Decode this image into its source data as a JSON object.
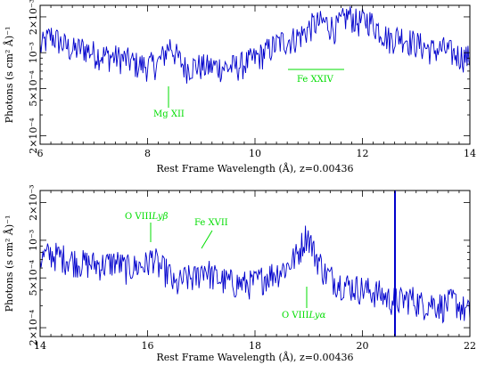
{
  "chart_data": [
    {
      "type": "line",
      "xlabel": "Rest Frame Wavelength (Å), z=0.00436",
      "ylabel": "Photons  (s cm² Å)⁻¹",
      "xlim": [
        6,
        14
      ],
      "ylim": [
        0.00017,
        0.0025
      ],
      "yscale": "log",
      "grid": false,
      "xticks": [
        6,
        8,
        10,
        12,
        14
      ],
      "xtick_labels": [
        "6",
        "8",
        "10",
        "12",
        "14"
      ],
      "yticks": [
        0.0002,
        0.0005,
        0.001,
        0.002
      ],
      "ytick_labels": [
        "2×10⁻⁴",
        "5×10⁻⁴",
        "10⁻³",
        "2×10⁻³"
      ],
      "series_color": "#0000cc",
      "annotation_color": "#00dd00",
      "series": [
        {
          "x": [
            6.0,
            6.2,
            6.4,
            6.6,
            6.8,
            7.0,
            7.2,
            7.4,
            7.6,
            7.8,
            8.0,
            8.2,
            8.3,
            8.42,
            8.55,
            8.7,
            8.9,
            9.1,
            9.3,
            9.5,
            9.7,
            9.9,
            10.1,
            10.3,
            10.5,
            10.7,
            10.9,
            11.0,
            11.1,
            11.3,
            11.5,
            11.6,
            11.75,
            11.9,
            12.1,
            12.3,
            12.5,
            12.7,
            12.9,
            13.1,
            13.3,
            13.5,
            13.7,
            13.9,
            14.0
          ],
          "y": [
            0.0011,
            0.0014,
            0.0012,
            0.00105,
            0.0011,
            0.001,
            0.00095,
            0.00092,
            0.00088,
            0.0008,
            0.00078,
            0.00082,
            0.00095,
            0.00118,
            0.00092,
            0.00075,
            0.00078,
            0.00076,
            0.00077,
            0.00075,
            0.00078,
            0.00085,
            0.00095,
            0.0011,
            0.00125,
            0.0013,
            0.00145,
            0.0016,
            0.00175,
            0.0018,
            0.0016,
            0.0018,
            0.0021,
            0.0018,
            0.0019,
            0.0016,
            0.0013,
            0.0014,
            0.00125,
            0.00115,
            0.00105,
            0.00108,
            0.00098,
            0.00093,
            0.0009
          ]
        }
      ],
      "annotations": [
        {
          "text": "Mg XII",
          "x": 8.42
        },
        {
          "text": "Fe XXIV",
          "x_range": [
            10.6,
            11.6
          ]
        }
      ]
    },
    {
      "type": "line",
      "xlabel": "Rest Frame Wavelength (Å), z=0.00436",
      "ylabel": "Photons  (s cm² Å)⁻¹",
      "xlim": [
        14,
        22
      ],
      "ylim": [
        0.00017,
        0.0025
      ],
      "yscale": "log",
      "grid": false,
      "xticks": [
        14,
        16,
        18,
        20,
        22
      ],
      "xtick_labels": [
        "14",
        "16",
        "18",
        "20",
        "22"
      ],
      "yticks": [
        0.0002,
        0.0005,
        0.001,
        0.002
      ],
      "ytick_labels": [
        "2×10⁻⁴",
        "5×10⁻⁴",
        "10⁻³",
        "2×10⁻³"
      ],
      "series_color": "#0000cc",
      "annotation_color": "#00dd00",
      "series": [
        {
          "x": [
            14.0,
            14.2,
            14.4,
            14.6,
            14.8,
            15.0,
            15.2,
            15.4,
            15.6,
            15.8,
            16.0,
            16.1,
            16.2,
            16.4,
            16.5,
            16.7,
            16.9,
            17.05,
            17.2,
            17.4,
            17.6,
            17.8,
            18.0,
            18.2,
            18.4,
            18.6,
            18.8,
            18.97,
            19.1,
            19.3,
            19.5,
            19.7,
            19.9,
            20.1,
            20.3,
            20.5,
            20.7,
            20.9,
            21.1,
            21.3,
            21.5,
            21.7,
            21.9,
            22.0
          ],
          "y": [
            0.00072,
            0.00078,
            0.00074,
            0.0007,
            0.00066,
            0.00065,
            0.00064,
            0.00068,
            0.0006,
            0.00062,
            0.00065,
            0.00075,
            0.00062,
            0.00055,
            0.00042,
            0.0005,
            0.0005,
            0.00062,
            0.00052,
            0.00048,
            0.00046,
            0.00045,
            0.00046,
            0.00052,
            0.00056,
            0.00062,
            0.00078,
            0.00115,
            0.0008,
            0.00055,
            0.00048,
            0.00044,
            0.00042,
            0.0004,
            0.00038,
            0.00034,
            0.00033,
            0.00035,
            0.00031,
            0.00032,
            0.0003,
            0.00033,
            0.00028,
            0.00026
          ]
        }
      ],
      "annotations": [
        {
          "text": "O VIII Lyβ",
          "x": 16.02
        },
        {
          "text": "Fe XVII",
          "x": 17.05
        },
        {
          "text": "O VIII Lyα",
          "x": 18.97
        }
      ]
    }
  ],
  "labels": {
    "mg": "Mg XII",
    "fe24": "Fe XXIV",
    "o8b": "O VIII",
    "o8b_greek": "Lyβ",
    "fe17": "Fe XVII",
    "o8a": "O VIII",
    "o8a_greek": "Lyα"
  }
}
